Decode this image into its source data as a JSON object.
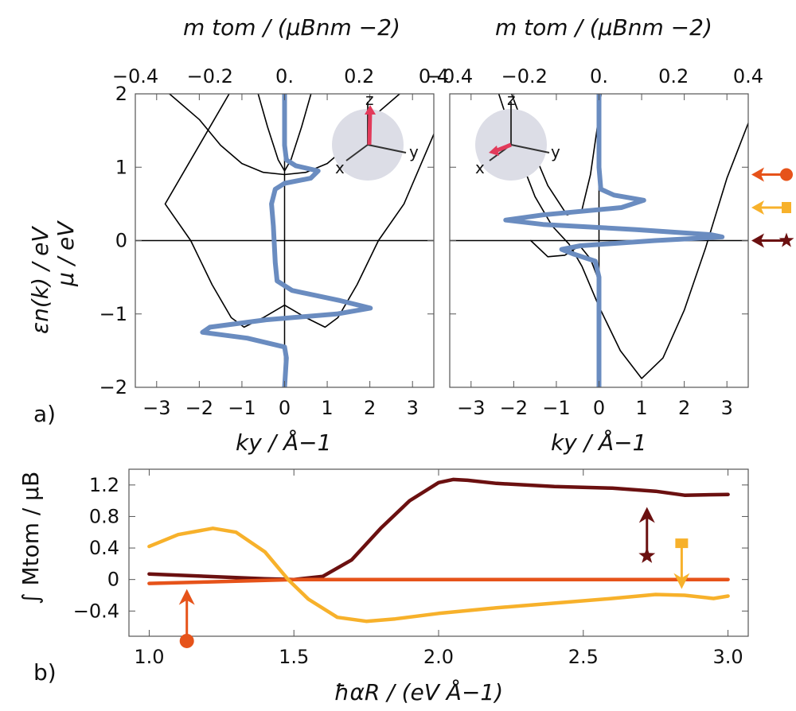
{
  "chart_data": [
    {
      "type": "line",
      "panel": "a-left",
      "top_xlabel": "m tom / (μBnm −2)",
      "top_ticks": [
        "−0.4",
        "−0.2",
        "0.",
        "0.2",
        "0.4"
      ],
      "top_xlim": [
        -0.4,
        0.4
      ],
      "xlabel": "ky / Å−1",
      "x_ticks": [
        "−3",
        "−2",
        "−1",
        "0",
        "1",
        "2",
        "3"
      ],
      "xlim": [
        -3.5,
        3.5
      ],
      "ylabel": "εn(k) / eV",
      "ylabel2": "μ / eV",
      "y_ticks": [
        "2",
        "1",
        "0",
        "−1",
        "−2"
      ],
      "ylim": [
        -2,
        2
      ],
      "series": [
        {
          "name": "band-upper",
          "color": "#000000",
          "points": [
            [
              -2.7,
              2.0
            ],
            [
              -2.0,
              1.65
            ],
            [
              -1.5,
              1.3
            ],
            [
              -1.0,
              1.05
            ],
            [
              -0.5,
              0.93
            ],
            [
              0,
              0.9
            ],
            [
              0.5,
              0.93
            ],
            [
              1.0,
              1.05
            ],
            [
              1.5,
              1.3
            ],
            [
              2.0,
              1.65
            ],
            [
              2.7,
              2.0
            ]
          ]
        },
        {
          "name": "band-lower",
          "color": "#000000",
          "points": [
            [
              -1.3,
              2.0
            ],
            [
              -2.8,
              0.5
            ],
            [
              -2.2,
              0.0
            ],
            [
              -1.7,
              -0.6
            ],
            [
              -1.25,
              -1.05
            ],
            [
              -0.95,
              -1.18
            ],
            [
              -0.5,
              -1.05
            ],
            [
              0,
              -0.88
            ],
            [
              0.5,
              -1.05
            ],
            [
              0.95,
              -1.18
            ],
            [
              1.25,
              -1.05
            ],
            [
              1.7,
              -0.6
            ],
            [
              2.2,
              0.0
            ],
            [
              2.8,
              0.5
            ],
            [
              3.5,
              1.45
            ]
          ]
        },
        {
          "name": "band-inner",
          "color": "#000000",
          "points": [
            [
              -0.62,
              2.0
            ],
            [
              -0.4,
              1.55
            ],
            [
              -0.15,
              1.1
            ],
            [
              0,
              0.95
            ],
            [
              0.15,
              1.1
            ],
            [
              0.4,
              1.55
            ],
            [
              0.62,
              2.0
            ]
          ]
        },
        {
          "name": "m_tom",
          "color": "#6a8cc0",
          "axis": "top",
          "points": [
            [
              0.0,
              2.0
            ],
            [
              0.0,
              1.6
            ],
            [
              0.0,
              1.3
            ],
            [
              0.005,
              1.1
            ],
            [
              0.03,
              1.02
            ],
            [
              0.09,
              0.95
            ],
            [
              0.07,
              0.85
            ],
            [
              0.0,
              0.78
            ],
            [
              -0.025,
              0.7
            ],
            [
              -0.035,
              0.5
            ],
            [
              -0.03,
              0.2
            ],
            [
              -0.025,
              -0.3
            ],
            [
              -0.02,
              -0.55
            ],
            [
              0.02,
              -0.68
            ],
            [
              0.15,
              -0.82
            ],
            [
              0.23,
              -0.92
            ],
            [
              0.14,
              -1.0
            ],
            [
              -0.05,
              -1.08
            ],
            [
              -0.2,
              -1.18
            ],
            [
              -0.22,
              -1.25
            ],
            [
              -0.1,
              -1.33
            ],
            [
              0.0,
              -1.45
            ],
            [
              0.005,
              -1.6
            ],
            [
              0.0,
              -2.0
            ]
          ]
        }
      ]
    },
    {
      "type": "line",
      "panel": "a-right",
      "top_xlabel": "m tom / (μBnm −2)",
      "top_ticks": [
        "−0.4",
        "−0.2",
        "0.",
        "0.2",
        "0.4"
      ],
      "top_xlim": [
        -0.4,
        0.4
      ],
      "xlabel": "ky / Å−1",
      "x_ticks": [
        "−3",
        "−2",
        "−1",
        "0",
        "1",
        "2",
        "3"
      ],
      "xlim": [
        -3.5,
        3.5
      ],
      "ylim": [
        -2,
        2
      ],
      "series": [
        {
          "name": "band-outer",
          "color": "#000000",
          "points": [
            [
              -2.35,
              2.0
            ],
            [
              -1.9,
              1.2
            ],
            [
              -1.5,
              0.6
            ],
            [
              -1.1,
              0.2
            ],
            [
              -0.7,
              -0.05
            ],
            [
              -0.4,
              -0.35
            ],
            [
              0,
              -0.9
            ],
            [
              0.5,
              -1.5
            ],
            [
              1.0,
              -1.88
            ],
            [
              1.5,
              -1.6
            ],
            [
              2.0,
              -0.95
            ],
            [
              2.5,
              -0.1
            ],
            [
              3.0,
              0.85
            ],
            [
              3.5,
              1.6
            ]
          ]
        },
        {
          "name": "band-inner",
          "color": "#000000",
          "points": [
            [
              -2.05,
              2.0
            ],
            [
              -1.6,
              1.3
            ],
            [
              -1.2,
              0.75
            ],
            [
              -0.75,
              0.35
            ],
            [
              -0.4,
              0.42
            ],
            [
              -0.2,
              0.9
            ],
            [
              -0.05,
              1.5
            ],
            [
              0.05,
              2.0
            ]
          ]
        },
        {
          "name": "band-small",
          "color": "#000000",
          "points": [
            [
              -1.6,
              0.0
            ],
            [
              -1.2,
              -0.22
            ],
            [
              -0.8,
              -0.2
            ],
            [
              -0.45,
              -0.07
            ],
            [
              -0.2,
              -0.25
            ],
            [
              0,
              -0.55
            ]
          ]
        },
        {
          "name": "m_tom",
          "color": "#6a8cc0",
          "axis": "top",
          "points": [
            [
              0.0,
              2.0
            ],
            [
              0.0,
              1.0
            ],
            [
              0.005,
              0.7
            ],
            [
              0.04,
              0.62
            ],
            [
              0.12,
              0.55
            ],
            [
              0.06,
              0.45
            ],
            [
              -0.15,
              0.35
            ],
            [
              -0.25,
              0.28
            ],
            [
              -0.15,
              0.22
            ],
            [
              0.1,
              0.15
            ],
            [
              0.3,
              0.08
            ],
            [
              0.33,
              0.05
            ],
            [
              0.15,
              0.0
            ],
            [
              -0.05,
              -0.07
            ],
            [
              -0.1,
              -0.12
            ],
            [
              -0.07,
              -0.18
            ],
            [
              -0.01,
              -0.28
            ],
            [
              0.0,
              -0.5
            ],
            [
              0.0,
              -2.0
            ]
          ]
        }
      ]
    },
    {
      "type": "line",
      "panel": "b",
      "xlabel": "ħαR  / (eV Å−1)",
      "ylabel": "∫ Mtom / μB",
      "x_ticks": [
        "1.0",
        "1.5",
        "2.0",
        "2.5",
        "3.0"
      ],
      "xlim": [
        0.93,
        3.07
      ],
      "y_ticks": [
        "1.2",
        "0.8",
        "0.4",
        "0",
        "−0.4"
      ],
      "ylim": [
        -0.72,
        1.4
      ],
      "series": [
        {
          "name": "dark-red-star",
          "color": "#6b1010",
          "points": [
            [
              1.0,
              0.07
            ],
            [
              1.2,
              0.04
            ],
            [
              1.4,
              0.01
            ],
            [
              1.5,
              0.0
            ],
            [
              1.6,
              0.04
            ],
            [
              1.7,
              0.25
            ],
            [
              1.8,
              0.65
            ],
            [
              1.9,
              1.0
            ],
            [
              2.0,
              1.23
            ],
            [
              2.05,
              1.27
            ],
            [
              2.1,
              1.26
            ],
            [
              2.2,
              1.22
            ],
            [
              2.4,
              1.18
            ],
            [
              2.6,
              1.16
            ],
            [
              2.75,
              1.12
            ],
            [
              2.85,
              1.07
            ],
            [
              3.0,
              1.08
            ]
          ]
        },
        {
          "name": "orange-circle",
          "color": "#e6531a",
          "points": [
            [
              1.0,
              -0.05
            ],
            [
              1.2,
              -0.03
            ],
            [
              1.4,
              -0.01
            ],
            [
              1.5,
              0.0
            ],
            [
              2.0,
              0.0
            ],
            [
              3.0,
              0.0
            ]
          ]
        },
        {
          "name": "yellow-square",
          "color": "#f7b12b",
          "points": [
            [
              1.0,
              0.42
            ],
            [
              1.1,
              0.57
            ],
            [
              1.22,
              0.65
            ],
            [
              1.3,
              0.6
            ],
            [
              1.4,
              0.35
            ],
            [
              1.48,
              0.0
            ],
            [
              1.55,
              -0.25
            ],
            [
              1.65,
              -0.48
            ],
            [
              1.75,
              -0.53
            ],
            [
              1.85,
              -0.5
            ],
            [
              2.0,
              -0.43
            ],
            [
              2.2,
              -0.36
            ],
            [
              2.4,
              -0.3
            ],
            [
              2.6,
              -0.24
            ],
            [
              2.75,
              -0.19
            ],
            [
              2.85,
              -0.2
            ],
            [
              2.95,
              -0.24
            ],
            [
              3.0,
              -0.21
            ]
          ]
        }
      ],
      "markers": [
        {
          "name": "orange-circle-arrow",
          "color": "#e6531a",
          "x": 1.13,
          "y_from": -0.78,
          "y_to": -0.12
        },
        {
          "name": "dark-red-star-arrow",
          "color": "#6b1010",
          "x": 2.72,
          "y_from": 0.3,
          "y_to": 0.92
        },
        {
          "name": "yellow-square-arrow",
          "color": "#f7b12b",
          "x": 2.84,
          "y_from": 0.45,
          "y_to": -0.12
        }
      ]
    }
  ],
  "labels": {
    "panel_a": "a)",
    "panel_b": "b)"
  },
  "insets": [
    {
      "axes": [
        "z",
        "y",
        "x"
      ]
    },
    {
      "axes": [
        "z",
        "y",
        "x"
      ]
    }
  ],
  "legend_markers": [
    {
      "name": "circle",
      "color": "#e6531a",
      "energy": 0.9
    },
    {
      "name": "square",
      "color": "#f7b12b",
      "energy": 0.45
    },
    {
      "name": "star",
      "color": "#6b1010",
      "energy": 0.0
    }
  ]
}
